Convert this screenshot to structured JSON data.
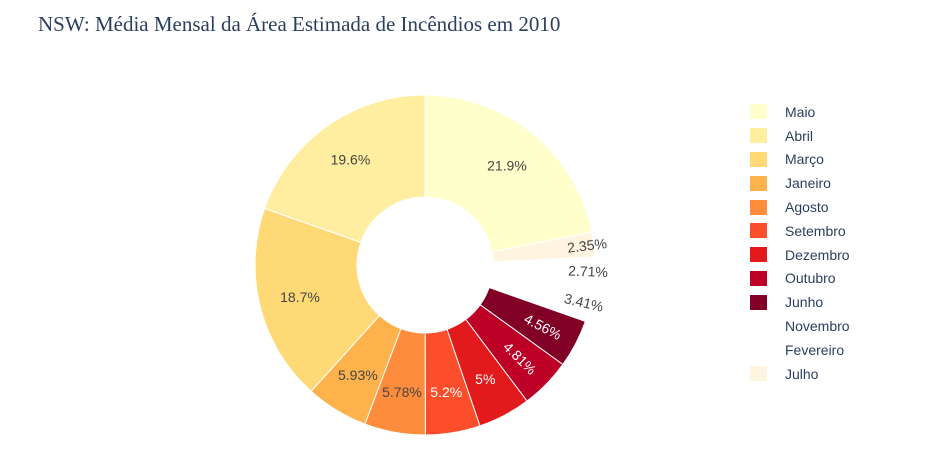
{
  "chart_data": {
    "type": "pie",
    "hole": true,
    "title": "NSW: Média Mensal da Área Estimada de Incêndios em 2010",
    "legend_position": "right",
    "slices": [
      {
        "label": "Maio",
        "percent": 21.9,
        "text": "21.9%",
        "color": "#ffffcc",
        "text_color": "#444444"
      },
      {
        "label": "Julho",
        "percent": 2.35,
        "text": "2.35%",
        "color": "#fff4e0",
        "text_color": "#444444"
      },
      {
        "label": "Fevereiro",
        "percent": 2.71,
        "text": "2.71%",
        "color": "#ffffff",
        "text_color": "#444444"
      },
      {
        "label": "Novembro",
        "percent": 3.41,
        "text": "3.41%",
        "color": "#ffffff",
        "text_color": "#444444"
      },
      {
        "label": "Junho",
        "percent": 4.56,
        "text": "4.56%",
        "color": "#800026",
        "text_color": "#ffffff"
      },
      {
        "label": "Outubro",
        "percent": 4.81,
        "text": "4.81%",
        "color": "#bd0026",
        "text_color": "#ffffff"
      },
      {
        "label": "Dezembro",
        "percent": 5.0,
        "text": "5%",
        "color": "#e31a1c",
        "text_color": "#ffffff"
      },
      {
        "label": "Setembro",
        "percent": 5.2,
        "text": "5.2%",
        "color": "#fc4e2a",
        "text_color": "#ffffff"
      },
      {
        "label": "Agosto",
        "percent": 5.78,
        "text": "5.78%",
        "color": "#fd8d3c",
        "text_color": "#444444"
      },
      {
        "label": "Janeiro",
        "percent": 5.93,
        "text": "5.93%",
        "color": "#feb24c",
        "text_color": "#444444"
      },
      {
        "label": "Março",
        "percent": 18.7,
        "text": "18.7%",
        "color": "#fed976",
        "text_color": "#444444"
      },
      {
        "label": "Abril",
        "percent": 19.6,
        "text": "19.6%",
        "color": "#ffeda0",
        "text_color": "#444444"
      }
    ],
    "legend": [
      {
        "label": "Maio",
        "color": "#ffffcc"
      },
      {
        "label": "Abril",
        "color": "#ffeda0"
      },
      {
        "label": "Março",
        "color": "#fed976"
      },
      {
        "label": "Janeiro",
        "color": "#feb24c"
      },
      {
        "label": "Agosto",
        "color": "#fd8d3c"
      },
      {
        "label": "Setembro",
        "color": "#fc4e2a"
      },
      {
        "label": "Dezembro",
        "color": "#e31a1c"
      },
      {
        "label": "Outubro",
        "color": "#bd0026"
      },
      {
        "label": "Junho",
        "color": "#800026"
      },
      {
        "label": "Novembro",
        "color": "#ffffff"
      },
      {
        "label": "Fevereiro",
        "color": "#ffffff"
      },
      {
        "label": "Julho",
        "color": "#fff4e0"
      }
    ]
  }
}
